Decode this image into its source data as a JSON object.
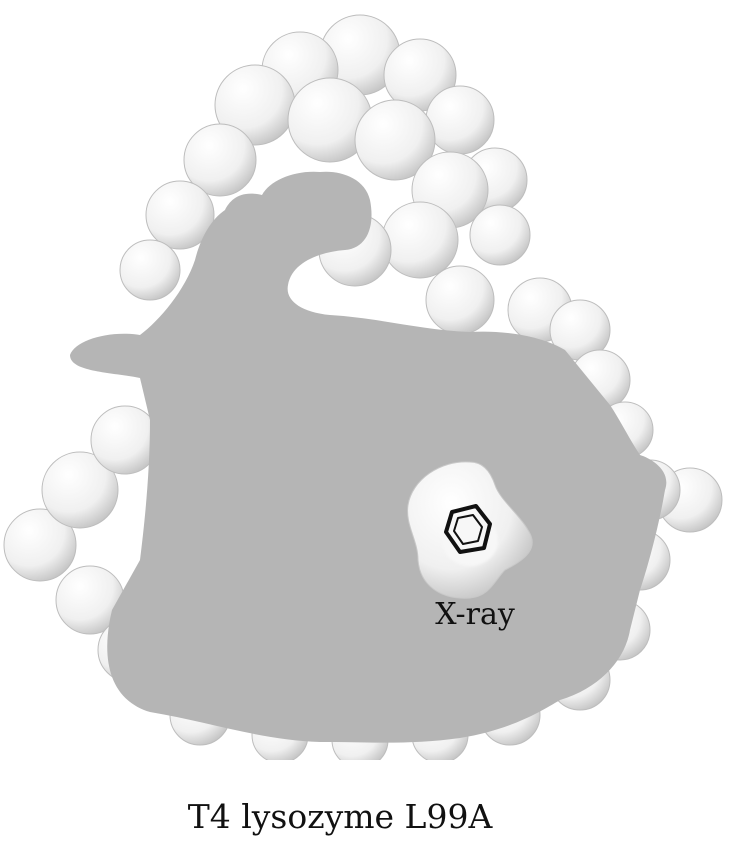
{
  "figure": {
    "pocket_label": "X-ray",
    "caption": "T4 lysozyme L99A",
    "colors": {
      "surface": "#f4f4f4",
      "surface_shadow": "#c9c9c9",
      "cut_plane": "#b5b5b5",
      "ligand": "#111111"
    },
    "icons": {
      "protein": "protein-surface-icon",
      "ligand": "benzene-ring-icon"
    }
  }
}
